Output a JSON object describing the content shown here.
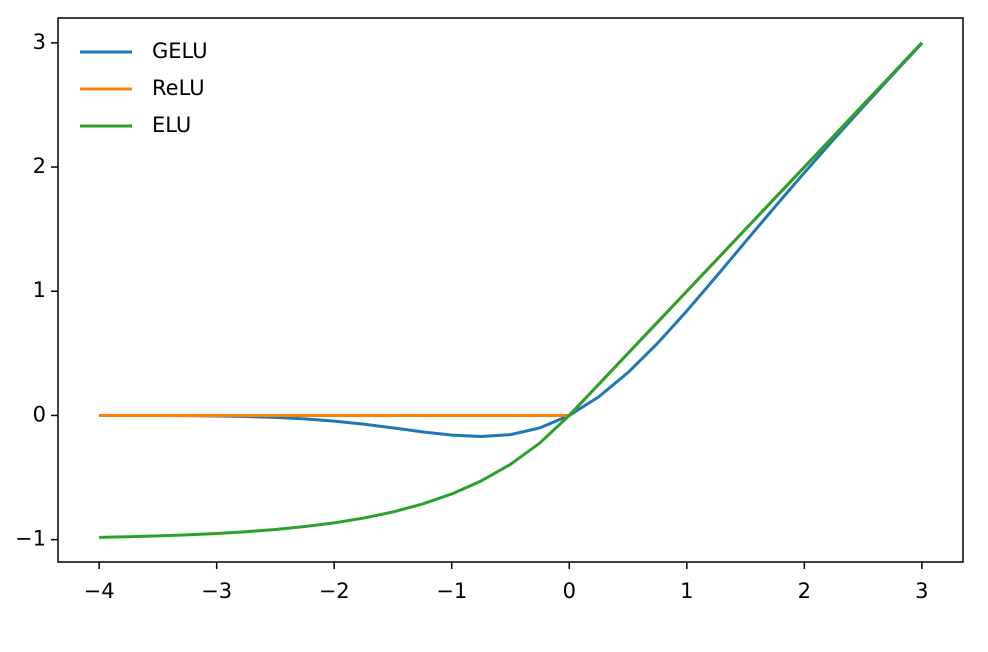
{
  "chart_data": {
    "type": "line",
    "x": [
      -4,
      -3.75,
      -3.5,
      -3.25,
      -3,
      -2.75,
      -2.5,
      -2.25,
      -2,
      -1.75,
      -1.5,
      -1.25,
      -1,
      -0.75,
      -0.5,
      -0.25,
      0,
      0.25,
      0.5,
      0.75,
      1,
      1.25,
      1.5,
      1.75,
      2,
      2.25,
      2.5,
      2.75,
      3
    ],
    "series": [
      {
        "name": "GELU",
        "color": "#1f77b4",
        "values": [
          -0.0001,
          -0.0003,
          -0.0008,
          -0.0019,
          -0.0041,
          -0.0082,
          -0.0155,
          -0.0275,
          -0.0455,
          -0.0701,
          -0.1002,
          -0.1321,
          -0.1587,
          -0.17,
          -0.1543,
          -0.1003,
          0,
          0.1497,
          0.3457,
          0.58,
          0.8413,
          1.1179,
          1.3998,
          1.6799,
          1.9545,
          2.2225,
          2.4845,
          2.7418,
          2.996
        ]
      },
      {
        "name": "ReLU",
        "color": "#ff7f0e",
        "values": [
          0,
          0,
          0,
          0,
          0,
          0,
          0,
          0,
          0,
          0,
          0,
          0,
          0,
          0,
          0,
          0,
          0,
          0.25,
          0.5,
          0.75,
          1,
          1.25,
          1.5,
          1.75,
          2,
          2.25,
          2.5,
          2.75,
          3
        ]
      },
      {
        "name": "ELU",
        "color": "#2ca02c",
        "values": [
          -0.9817,
          -0.9765,
          -0.9698,
          -0.9612,
          -0.9502,
          -0.9361,
          -0.9179,
          -0.8946,
          -0.8647,
          -0.8262,
          -0.7769,
          -0.7135,
          -0.6321,
          -0.5276,
          -0.3935,
          -0.2212,
          0,
          0.25,
          0.5,
          0.75,
          1,
          1.25,
          1.5,
          1.75,
          2,
          2.25,
          2.5,
          2.75,
          3
        ]
      }
    ],
    "xlim": [
      -4.35,
      3.35
    ],
    "ylim": [
      -1.18,
      3.2
    ],
    "xticks": [
      {
        "value": -4,
        "label": "−4"
      },
      {
        "value": -3,
        "label": "−3"
      },
      {
        "value": -2,
        "label": "−2"
      },
      {
        "value": -1,
        "label": "−1"
      },
      0,
      1,
      2,
      3
    ],
    "yticks": [
      {
        "value": -1,
        "label": "−1"
      },
      0,
      1,
      2,
      3
    ],
    "legend": "upper left",
    "grid": false
  }
}
